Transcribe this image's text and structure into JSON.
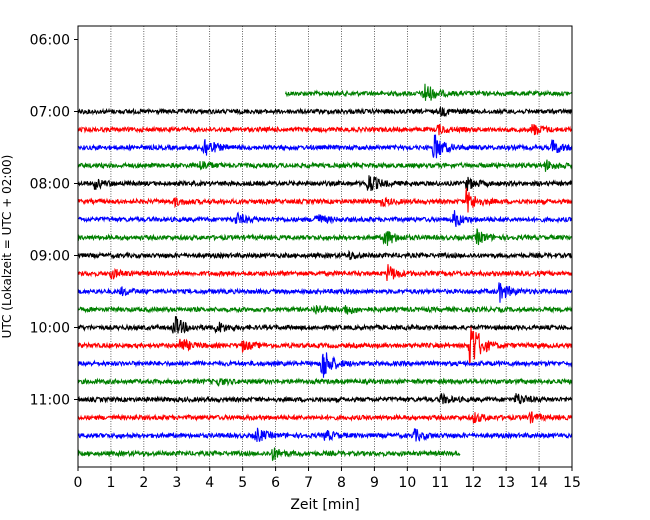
{
  "chart_data": {
    "type": "line",
    "title": "",
    "xlabel": "Zeit  [min]",
    "ylabel": "UTC (Lokalzeit = UTC + 02:00)",
    "xlim": [
      0,
      15
    ],
    "x_ticks": [
      0,
      1,
      2,
      3,
      4,
      5,
      6,
      7,
      8,
      9,
      10,
      11,
      12,
      13,
      14,
      15
    ],
    "x_tick_labels": [
      "0",
      "1",
      "2",
      "3",
      "4",
      "5",
      "6",
      "7",
      "8",
      "9",
      "10",
      "11",
      "12",
      "13",
      "14",
      "15"
    ],
    "y_range_hours": [
      5.75,
      12.0
    ],
    "y_ticks_hours": [
      6,
      7,
      8,
      9,
      10,
      11
    ],
    "y_tick_labels": [
      "06:00",
      "07:00",
      "08:00",
      "09:00",
      "10:00",
      "11:00"
    ],
    "x_grid": "dotted vertical lines at every minute",
    "line_spacing_min": 15,
    "trace_colors": [
      "#000000",
      "#ff0000",
      "#0000ff",
      "#008000"
    ],
    "traces": [
      {
        "start": "06:45",
        "x_start": 6.3,
        "x_end": 15,
        "color": "#008000",
        "events": [
          {
            "x": 10.5,
            "amp": 1.0
          }
        ]
      },
      {
        "start": "07:00",
        "x_start": 0,
        "x_end": 15,
        "color": "#000000",
        "events": [
          {
            "x": 11.0,
            "amp": 0.3
          }
        ]
      },
      {
        "start": "07:15",
        "x_start": 0,
        "x_end": 15,
        "color": "#ff0000",
        "events": [
          {
            "x": 10.9,
            "amp": 0.4
          },
          {
            "x": 13.8,
            "amp": 0.5
          }
        ]
      },
      {
        "start": "07:30",
        "x_start": 0,
        "x_end": 15,
        "color": "#0000ff",
        "events": [
          {
            "x": 3.8,
            "amp": 1.0
          },
          {
            "x": 10.8,
            "amp": 1.2
          },
          {
            "x": 14.4,
            "amp": 0.6
          }
        ]
      },
      {
        "start": "07:45",
        "x_start": 0,
        "x_end": 15,
        "color": "#008000",
        "events": [
          {
            "x": 3.7,
            "amp": 0.4
          },
          {
            "x": 14.2,
            "amp": 0.4
          }
        ]
      },
      {
        "start": "08:00",
        "x_start": 0,
        "x_end": 15,
        "color": "#000000",
        "events": [
          {
            "x": 0.5,
            "amp": 0.4
          },
          {
            "x": 8.8,
            "amp": 0.9
          },
          {
            "x": 11.8,
            "amp": 0.5
          }
        ]
      },
      {
        "start": "08:15",
        "x_start": 0,
        "x_end": 15,
        "color": "#ff0000",
        "events": [
          {
            "x": 2.9,
            "amp": 0.3
          },
          {
            "x": 9.2,
            "amp": 0.3
          },
          {
            "x": 11.8,
            "amp": 1.0
          }
        ]
      },
      {
        "start": "08:30",
        "x_start": 0,
        "x_end": 15,
        "color": "#0000ff",
        "events": [
          {
            "x": 4.8,
            "amp": 0.5
          },
          {
            "x": 7.2,
            "amp": 0.5
          },
          {
            "x": 11.4,
            "amp": 0.7
          }
        ]
      },
      {
        "start": "08:45",
        "x_start": 0,
        "x_end": 15,
        "color": "#008000",
        "events": [
          {
            "x": 9.3,
            "amp": 0.8
          },
          {
            "x": 12.1,
            "amp": 0.6
          }
        ]
      },
      {
        "start": "09:00",
        "x_start": 0,
        "x_end": 15,
        "color": "#000000",
        "events": [
          {
            "x": 8.2,
            "amp": 0.3
          }
        ]
      },
      {
        "start": "09:15",
        "x_start": 0,
        "x_end": 15,
        "color": "#ff0000",
        "events": [
          {
            "x": 1.0,
            "amp": 0.4
          },
          {
            "x": 9.4,
            "amp": 0.7
          }
        ]
      },
      {
        "start": "09:30",
        "x_start": 0,
        "x_end": 15,
        "color": "#0000ff",
        "events": [
          {
            "x": 1.3,
            "amp": 0.3
          },
          {
            "x": 12.8,
            "amp": 0.8
          }
        ]
      },
      {
        "start": "09:45",
        "x_start": 0,
        "x_end": 15,
        "color": "#008000",
        "events": [
          {
            "x": 7.2,
            "amp": 0.4
          },
          {
            "x": 8.1,
            "amp": 0.4
          }
        ]
      },
      {
        "start": "10:00",
        "x_start": 0,
        "x_end": 15,
        "color": "#000000",
        "events": [
          {
            "x": 2.9,
            "amp": 1.0
          },
          {
            "x": 4.2,
            "amp": 0.5
          }
        ]
      },
      {
        "start": "10:15",
        "x_start": 0,
        "x_end": 15,
        "color": "#ff0000",
        "events": [
          {
            "x": 3.1,
            "amp": 0.6
          },
          {
            "x": 5.0,
            "amp": 0.4
          },
          {
            "x": 11.9,
            "amp": 2.5
          }
        ]
      },
      {
        "start": "10:30",
        "x_start": 0,
        "x_end": 15,
        "color": "#0000ff",
        "events": [
          {
            "x": 7.4,
            "amp": 1.6
          }
        ]
      },
      {
        "start": "10:45",
        "x_start": 0,
        "x_end": 15,
        "color": "#008000",
        "events": [
          {
            "x": 4.2,
            "amp": 0.3
          }
        ]
      },
      {
        "start": "11:00",
        "x_start": 0,
        "x_end": 15,
        "color": "#000000",
        "events": [
          {
            "x": 11.0,
            "amp": 0.4
          },
          {
            "x": 13.3,
            "amp": 0.5
          }
        ]
      },
      {
        "start": "11:15",
        "x_start": 0,
        "x_end": 15,
        "color": "#ff0000",
        "events": [
          {
            "x": 12.0,
            "amp": 0.4
          },
          {
            "x": 13.7,
            "amp": 0.4
          }
        ]
      },
      {
        "start": "11:30",
        "x_start": 0,
        "x_end": 15,
        "color": "#0000ff",
        "events": [
          {
            "x": 5.4,
            "amp": 0.6
          },
          {
            "x": 7.5,
            "amp": 0.4
          },
          {
            "x": 10.2,
            "amp": 0.5
          }
        ]
      },
      {
        "start": "11:45",
        "x_start": 0,
        "x_end": 11.6,
        "color": "#008000",
        "events": [
          {
            "x": 5.9,
            "amp": 0.5
          }
        ]
      }
    ]
  }
}
